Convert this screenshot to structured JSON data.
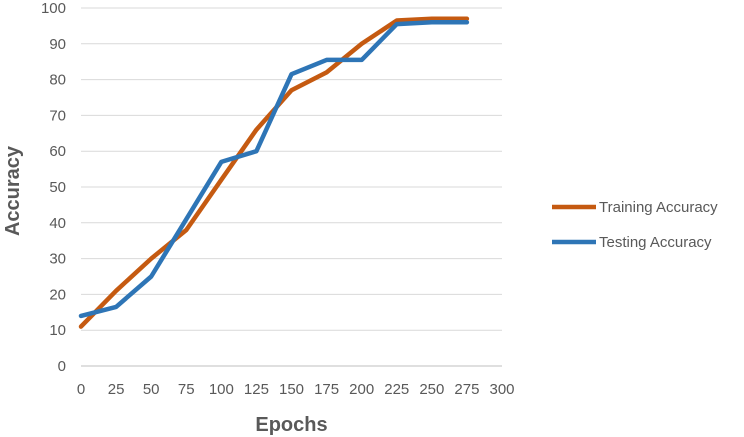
{
  "chart_data": {
    "type": "line",
    "title": "",
    "xlabel": "Epochs",
    "ylabel": "Accuracy",
    "xlim": [
      0,
      300
    ],
    "ylim": [
      0,
      100
    ],
    "x_ticks": [
      0,
      25,
      50,
      75,
      100,
      125,
      150,
      175,
      200,
      225,
      250,
      275,
      300
    ],
    "y_ticks": [
      0,
      10,
      20,
      30,
      40,
      50,
      60,
      70,
      80,
      90,
      100
    ],
    "grid": "horizontal",
    "legend_position": "right",
    "series": [
      {
        "name": "Training Accuracy",
        "color": "#c55a11",
        "x": [
          0,
          25,
          50,
          75,
          100,
          125,
          150,
          175,
          200,
          225,
          250,
          275
        ],
        "y": [
          11,
          21,
          30,
          38,
          52,
          66,
          77,
          82,
          90,
          96.5,
          97,
          97
        ]
      },
      {
        "name": "Testing Accuracy",
        "color": "#2e75b6",
        "x": [
          0,
          25,
          50,
          75,
          100,
          125,
          150,
          175,
          200,
          225,
          250,
          275
        ],
        "y": [
          14,
          16.5,
          25,
          41,
          57,
          60,
          81.5,
          85.5,
          85.5,
          95.5,
          96,
          96
        ]
      }
    ]
  }
}
